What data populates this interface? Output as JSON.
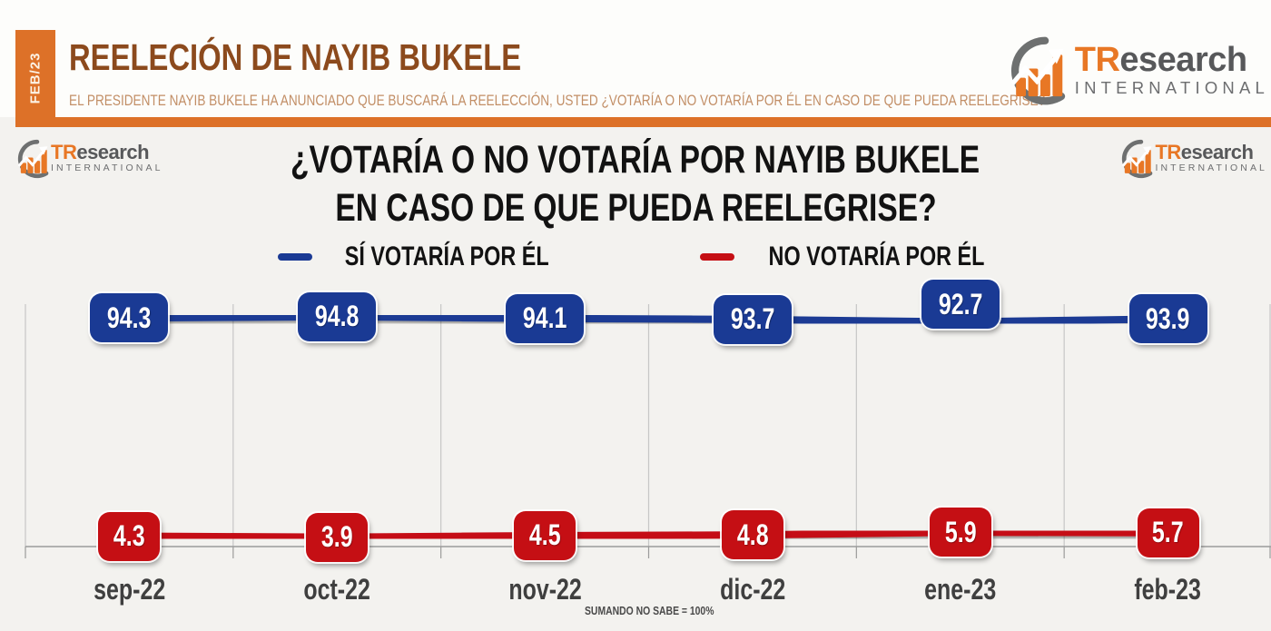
{
  "header": {
    "date_tab": "FEB/23",
    "title": "REELECIÓN DE NAYIB BUKELE",
    "subtitle": "EL PRESIDENTE NAYIB BUKELE HA ANUNCIADO QUE BUSCARÁ LA REELECCIÓN, USTED ¿VOTARÍA O NO VOTARÍA POR ÉL EN CASO DE QUE PUEDA REELEGRISE?",
    "accent_color": "#DD7128",
    "title_color": "#8C4A1D"
  },
  "logo": {
    "name_part_orange": "TR",
    "name_part_grey": "esearch",
    "subtitle": "INTERNATIONAL",
    "orange": "#E87725",
    "grey": "#57585A"
  },
  "chart_data": {
    "type": "line",
    "title_line1": "¿VOTARÍA O NO VOTARÍA POR NAYIB BUKELE",
    "title_line2": "EN CASO DE QUE PUEDA REELEGRISE?",
    "categories": [
      "sep-22",
      "oct-22",
      "nov-22",
      "dic-22",
      "ene-23",
      "feb-23"
    ],
    "series": [
      {
        "name": "SÍ VOTARÍA POR ÉL",
        "color": "#1A3A94",
        "values": [
          94.3,
          94.8,
          94.1,
          93.7,
          92.7,
          93.9
        ],
        "label_positions": [
          "center",
          "center",
          "center",
          "center",
          "above",
          "center"
        ]
      },
      {
        "name": "NO VOTARÍA POR ÉL",
        "color": "#C50F14",
        "values": [
          4.3,
          3.9,
          4.5,
          4.8,
          5.9,
          5.7
        ],
        "label_positions": [
          "center",
          "center",
          "center",
          "center",
          "center",
          "center"
        ]
      }
    ],
    "ylim": [
      0,
      100
    ],
    "grid": "vertical-between-categories",
    "legend_position": "top-center",
    "footnote": "SUMANDO  NO SABE = 100%",
    "gridline_color": "#C6C6C6",
    "axis_color": "#9B9B9B",
    "category_label_color": "#3F3F3F"
  }
}
